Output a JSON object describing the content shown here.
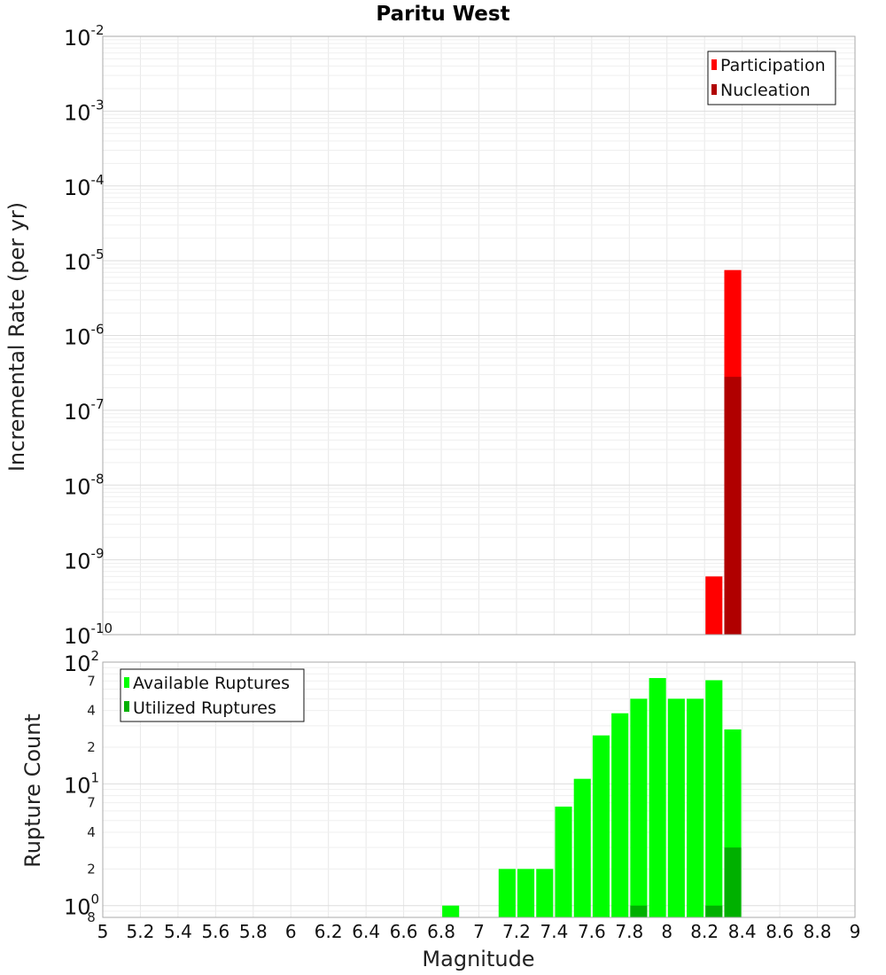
{
  "chart_data": [
    {
      "type": "bar",
      "title": "Paritu West",
      "ylabel": "Incremental Rate (per yr)",
      "yscale": "log",
      "ylim": [
        1e-10,
        0.01
      ],
      "xlim": [
        5,
        9
      ],
      "grid": true,
      "legend_position": "top-right",
      "y_tick_labels": [
        {
          "base": "10",
          "exp": "-10"
        },
        {
          "base": "10",
          "exp": "-9"
        },
        {
          "base": "10",
          "exp": "-8"
        },
        {
          "base": "10",
          "exp": "-7"
        },
        {
          "base": "10",
          "exp": "-6"
        },
        {
          "base": "10",
          "exp": "-5"
        },
        {
          "base": "10",
          "exp": "-4"
        },
        {
          "base": "10",
          "exp": "-3"
        },
        {
          "base": "10",
          "exp": "-2"
        }
      ],
      "series": [
        {
          "name": "Participation",
          "color": "#ff0000",
          "points": [
            {
              "x": 8.25,
              "y": 6e-10
            },
            {
              "x": 8.35,
              "y": 7.5e-06
            }
          ]
        },
        {
          "name": "Nucleation",
          "color": "#b00000",
          "points": [
            {
              "x": 8.35,
              "y": 2.8e-07
            }
          ]
        }
      ]
    },
    {
      "type": "bar",
      "ylabel": "Rupture Count",
      "xlabel": "Magnitude",
      "yscale": "log",
      "ylim": [
        0.8,
        100
      ],
      "xlim": [
        5,
        9
      ],
      "grid": true,
      "legend_position": "top-left",
      "x_tick_labels": [
        "5",
        "5.2",
        "5.4",
        "5.6",
        "5.8",
        "6",
        "6.2",
        "6.4",
        "6.6",
        "6.8",
        "7",
        "7.2",
        "7.4",
        "7.6",
        "7.8",
        "8",
        "8.2",
        "8.4",
        "8.6",
        "8.8",
        "9"
      ],
      "y_tick_labels": [
        {
          "value": 100,
          "base": "10",
          "exp": "2"
        },
        {
          "value": 10,
          "base": "10",
          "exp": "1"
        },
        {
          "value": 1,
          "base": "10",
          "exp": "0"
        }
      ],
      "y_minor_labels": [
        {
          "value": 70,
          "label": "7"
        },
        {
          "value": 40,
          "label": "4"
        },
        {
          "value": 20,
          "label": "2"
        },
        {
          "value": 7,
          "label": "7"
        },
        {
          "value": 4,
          "label": "4"
        },
        {
          "value": 2,
          "label": "2"
        },
        {
          "value": 0.8,
          "label": "8"
        }
      ],
      "series": [
        {
          "name": "Available Ruptures",
          "color": "#00ff00",
          "points": [
            {
              "x": 6.85,
              "y": 1
            },
            {
              "x": 7.15,
              "y": 2
            },
            {
              "x": 7.25,
              "y": 2
            },
            {
              "x": 7.35,
              "y": 2
            },
            {
              "x": 7.45,
              "y": 6.5
            },
            {
              "x": 7.55,
              "y": 11
            },
            {
              "x": 7.65,
              "y": 25
            },
            {
              "x": 7.75,
              "y": 38
            },
            {
              "x": 7.85,
              "y": 50
            },
            {
              "x": 7.95,
              "y": 74
            },
            {
              "x": 8.05,
              "y": 50
            },
            {
              "x": 8.15,
              "y": 50
            },
            {
              "x": 8.25,
              "y": 71
            },
            {
              "x": 8.35,
              "y": 28
            }
          ]
        },
        {
          "name": "Utilized Ruptures",
          "color": "#00b000",
          "points": [
            {
              "x": 7.85,
              "y": 1
            },
            {
              "x": 8.25,
              "y": 1
            },
            {
              "x": 8.35,
              "y": 3
            }
          ]
        }
      ]
    }
  ]
}
